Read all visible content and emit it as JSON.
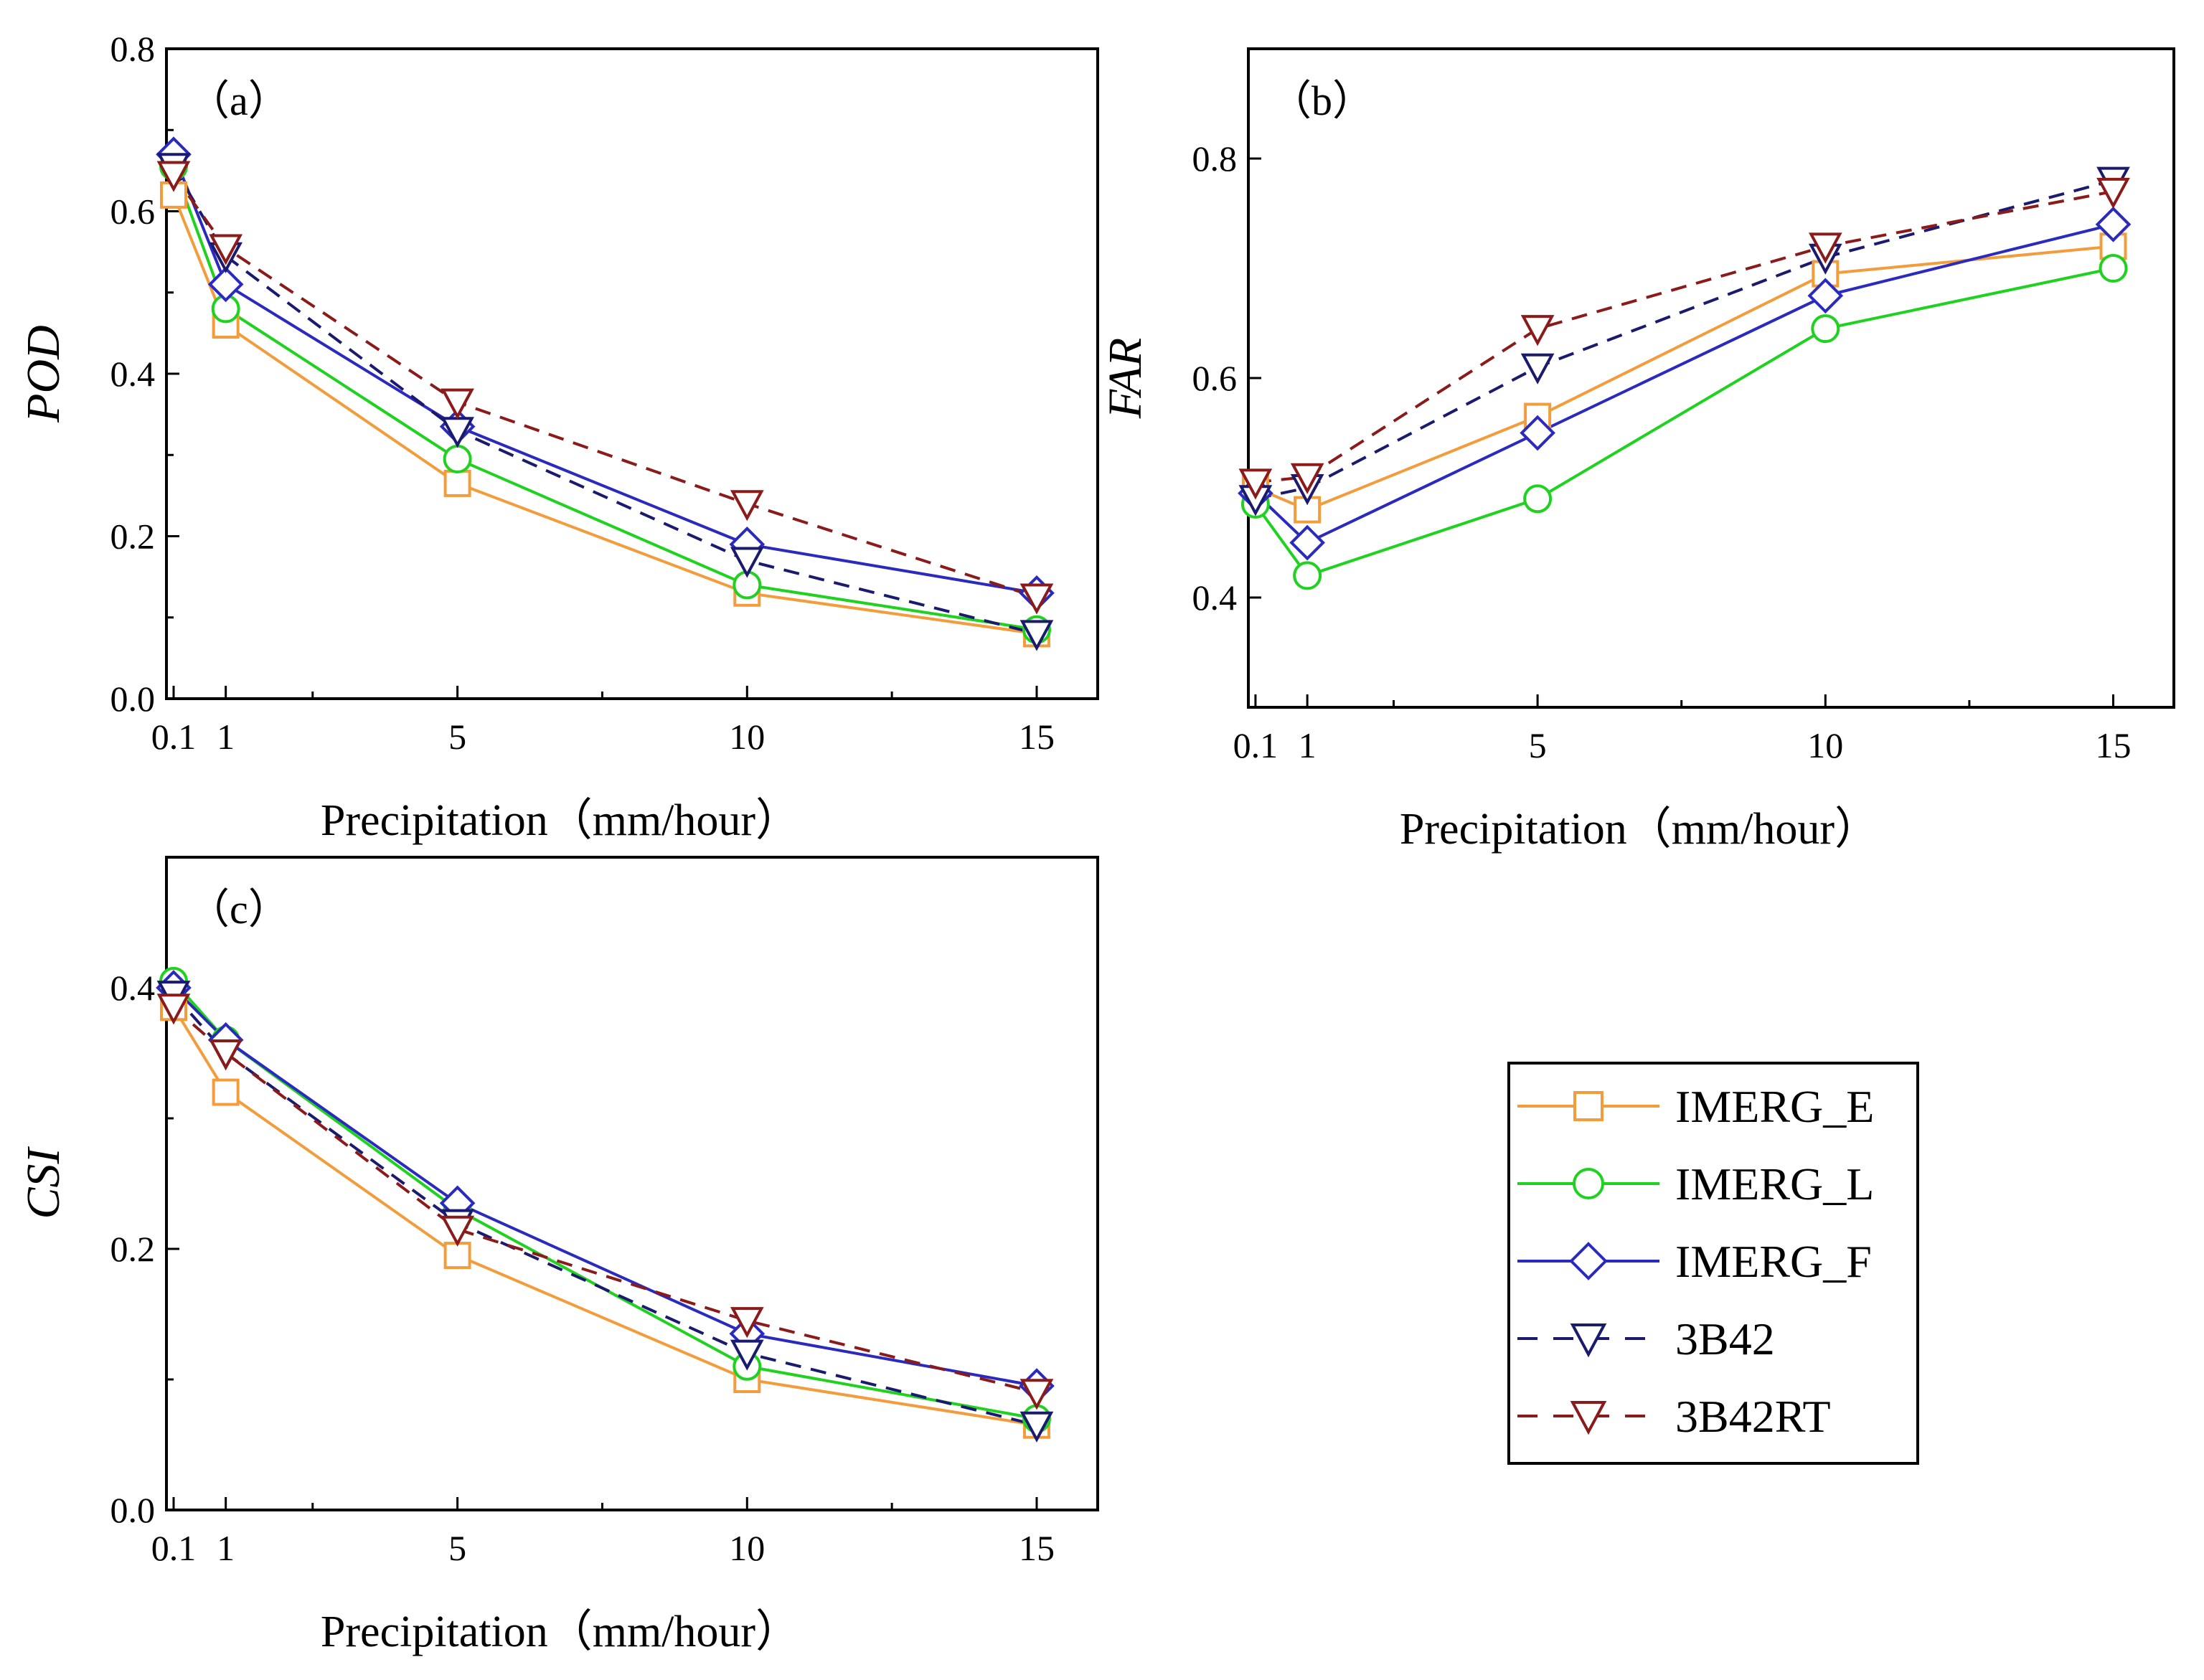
{
  "chart_data": [
    {
      "type": "line",
      "panel_label": "（a）",
      "xlabel": "Precipitation（mm/hour）",
      "ylabel": "POD",
      "x": [
        0.1,
        1,
        5,
        10,
        15
      ],
      "x_tick_labels": [
        "0.1",
        "1",
        "5",
        "10",
        "15"
      ],
      "xlim": [
        0,
        16
      ],
      "ylim": [
        0,
        0.8
      ],
      "y_ticks": [
        0.0,
        0.2,
        0.4,
        0.6,
        0.8
      ],
      "y_tick_labels": [
        "0.0",
        "0.2",
        "0.4",
        "0.6",
        "0.8"
      ],
      "series": [
        {
          "name": "IMERG_E",
          "values": [
            0.62,
            0.46,
            0.265,
            0.13,
            0.08
          ]
        },
        {
          "name": "IMERG_L",
          "values": [
            0.655,
            0.48,
            0.295,
            0.14,
            0.085
          ]
        },
        {
          "name": "IMERG_F",
          "values": [
            0.67,
            0.51,
            0.335,
            0.19,
            0.13
          ]
        },
        {
          "name": "3B42",
          "values": [
            0.655,
            0.545,
            0.33,
            0.17,
            0.08
          ]
        },
        {
          "name": "3B42RT",
          "values": [
            0.645,
            0.555,
            0.365,
            0.24,
            0.125
          ]
        }
      ]
    },
    {
      "type": "line",
      "panel_label": "（b）",
      "xlabel": "Precipitation（mm/hour）",
      "ylabel": "FAR",
      "x": [
        0.1,
        1,
        5,
        10,
        15
      ],
      "x_tick_labels": [
        "0.1",
        "1",
        "5",
        "10",
        "15"
      ],
      "xlim": [
        0,
        16
      ],
      "ylim": [
        0.3,
        0.9
      ],
      "y_ticks": [
        0.4,
        0.6,
        0.8
      ],
      "y_tick_labels": [
        "0.4",
        "0.6",
        "0.8"
      ],
      "series": [
        {
          "name": "IMERG_E",
          "values": [
            0.5,
            0.48,
            0.565,
            0.695,
            0.72
          ]
        },
        {
          "name": "IMERG_L",
          "values": [
            0.485,
            0.42,
            0.49,
            0.645,
            0.7
          ]
        },
        {
          "name": "IMERG_F",
          "values": [
            0.495,
            0.45,
            0.55,
            0.675,
            0.74
          ]
        },
        {
          "name": "3B42",
          "values": [
            0.49,
            0.5,
            0.61,
            0.71,
            0.78
          ]
        },
        {
          "name": "3B42RT",
          "values": [
            0.505,
            0.51,
            0.645,
            0.72,
            0.77
          ]
        }
      ]
    },
    {
      "type": "line",
      "panel_label": "（c）",
      "xlabel": "Precipitation（mm/hour）",
      "ylabel": "CSI",
      "x": [
        0.1,
        1,
        5,
        10,
        15
      ],
      "x_tick_labels": [
        "0.1",
        "1",
        "5",
        "10",
        "15"
      ],
      "xlim": [
        0,
        16
      ],
      "ylim": [
        0,
        0.5
      ],
      "y_ticks": [
        0.0,
        0.2,
        0.4
      ],
      "y_tick_labels": [
        "0.0",
        "0.2",
        "0.4"
      ],
      "series": [
        {
          "name": "IMERG_E",
          "values": [
            0.385,
            0.32,
            0.195,
            0.1,
            0.065
          ]
        },
        {
          "name": "IMERG_L",
          "values": [
            0.405,
            0.36,
            0.23,
            0.11,
            0.07
          ]
        },
        {
          "name": "IMERG_F",
          "values": [
            0.4,
            0.36,
            0.235,
            0.135,
            0.095
          ]
        },
        {
          "name": "3B42",
          "values": [
            0.395,
            0.35,
            0.22,
            0.12,
            0.065
          ]
        },
        {
          "name": "3B42RT",
          "values": [
            0.385,
            0.35,
            0.215,
            0.145,
            0.09
          ]
        }
      ]
    }
  ],
  "legend": {
    "placement": "bottom-right",
    "entries": [
      {
        "name": "IMERG_E",
        "color": "#f39c3c",
        "marker": "square",
        "dash": "solid"
      },
      {
        "name": "IMERG_L",
        "color": "#1fd21f",
        "marker": "circle",
        "dash": "solid"
      },
      {
        "name": "IMERG_F",
        "color": "#2a2abf",
        "marker": "diamond",
        "dash": "solid"
      },
      {
        "name": "3B42",
        "color": "#1a1a6e",
        "marker": "triangle-down",
        "dash": "dashed"
      },
      {
        "name": "3B42RT",
        "color": "#8b1a1a",
        "marker": "triangle-down",
        "dash": "dashed"
      }
    ]
  }
}
